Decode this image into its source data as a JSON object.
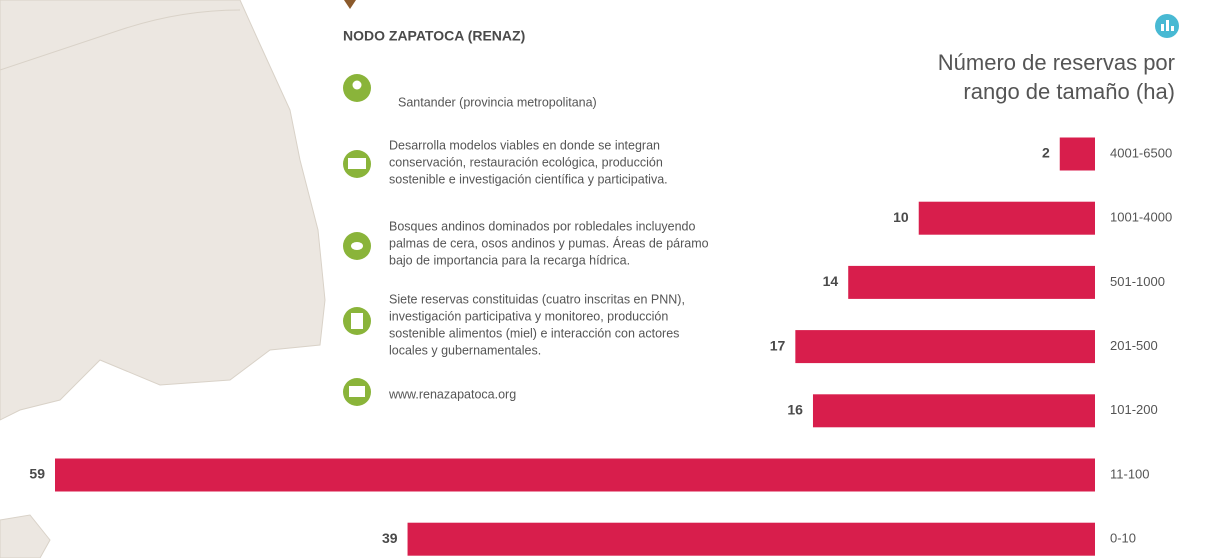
{
  "info": {
    "heading": "NODO ZAPATOCA (RENAZ)",
    "items": [
      {
        "lines": [
          "Santander (provincia metropolitana)"
        ]
      },
      {
        "lines": [
          "Desarrolla modelos viables en donde se integran",
          "conservación, restauración ecológica, producción",
          "sostenible e investigación científica y participativa."
        ]
      },
      {
        "lines": [
          "Bosques andinos dominados por robledales incluyendo",
          "palmas de cera, osos andinos y pumas. Áreas de páramo",
          "bajo de importancia para la recarga hídrica."
        ]
      },
      {
        "lines": [
          "Siete reservas constituidas (cuatro inscritas en PNN),",
          "investigación participativa y monitoreo, producción",
          "sostenible alimentos (miel) e interacción con actores",
          "locales y gubernamentales."
        ]
      },
      {
        "lines": [
          "www.renazapatoca.org"
        ]
      }
    ]
  },
  "chart_data": {
    "type": "bar",
    "orientation": "horizontal",
    "title": "Número de reservas por rango de tamaño (ha)",
    "categories": [
      "4001-6500",
      "1001-4000",
      "501-1000",
      "201-500",
      "101-200",
      "11-100",
      "0-10"
    ],
    "values": [
      2,
      10,
      14,
      17,
      16,
      59,
      39
    ],
    "color": "#d81e4c"
  }
}
